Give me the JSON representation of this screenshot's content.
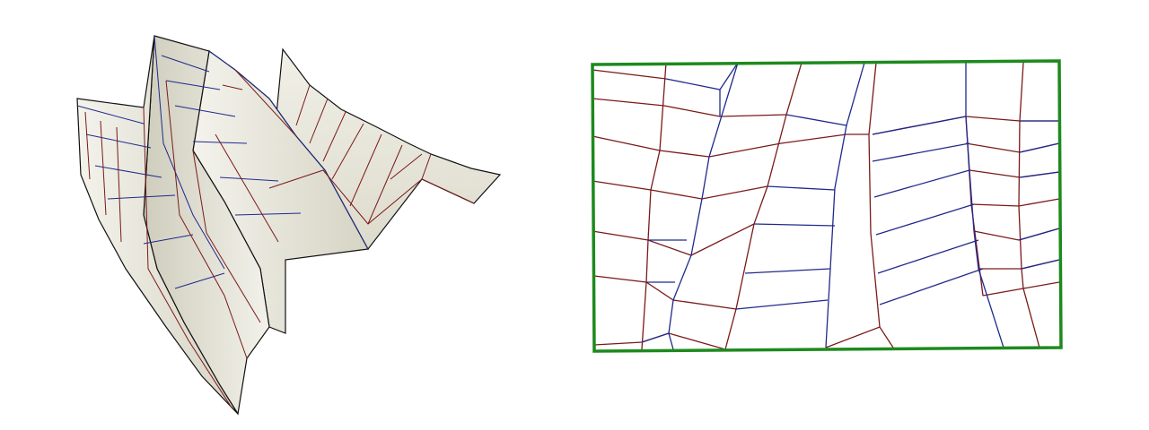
{
  "colors": {
    "background": "#ffffff",
    "paper_light": "#f2f1ea",
    "paper_mid": "#dedcce",
    "paper_dark": "#c9c7b6",
    "outline": "#111111",
    "mountain_crease": "#7a1a1a",
    "valley_crease": "#1f2a8c",
    "pattern_border": "#1d8a1d"
  },
  "views": {
    "folded_model": "folded-3d-view",
    "crease_pattern": "flat-crease-pattern"
  }
}
